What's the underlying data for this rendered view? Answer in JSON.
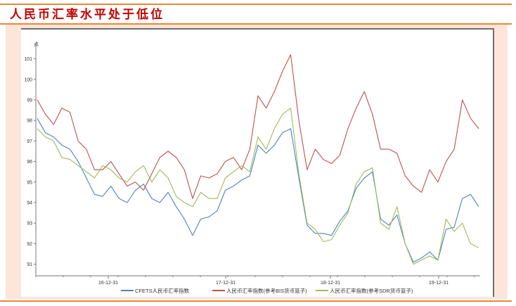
{
  "header": {
    "title": "人民币汇率水平处于低位"
  },
  "colors": {
    "accent_rule": "#ef8535",
    "title": "#c00000",
    "panel_bg": "#fde5d9",
    "cfets": "#4f81c4",
    "bis": "#c0504d",
    "sdr": "#9bbb59"
  },
  "chart_data": {
    "type": "line",
    "title": "人民币汇率水平处于低位",
    "xlabel": "",
    "ylabel": "点",
    "ylim": [
      90.5,
      101.6
    ],
    "yticks": [
      91,
      92,
      93,
      94,
      95,
      96,
      97,
      98,
      99,
      100,
      101
    ],
    "xticks": [
      "16-12-31",
      "17-12-31",
      "18-12-31",
      "19-12-31"
    ],
    "grid": false,
    "legend_position": "bottom",
    "x": [
      "2015-11",
      "2015-12",
      "2016-01",
      "2016-02",
      "2016-03",
      "2016-04",
      "2016-05",
      "2016-06",
      "2016-07",
      "2016-08",
      "2016-09",
      "2016-10",
      "2016-11",
      "2016-12",
      "2017-01",
      "2017-02",
      "2017-03",
      "2017-04",
      "2017-05",
      "2017-06",
      "2017-07",
      "2017-08",
      "2017-09",
      "2017-10",
      "2017-11",
      "2017-12",
      "2018-01",
      "2018-02",
      "2018-03",
      "2018-04",
      "2018-05",
      "2018-06",
      "2018-07",
      "2018-08",
      "2018-09",
      "2018-10",
      "2018-11",
      "2018-12",
      "2019-01",
      "2019-02",
      "2019-03",
      "2019-04",
      "2019-05",
      "2019-06",
      "2019-07",
      "2019-08",
      "2019-09",
      "2019-10",
      "2019-11",
      "2019-12",
      "2020-01",
      "2020-02",
      "2020-03",
      "2020-04",
      "2020-05"
    ],
    "series": [
      {
        "name": "CFETS人民币汇率指数",
        "color": "#4f81c4",
        "values": [
          98.1,
          97.4,
          97.2,
          96.8,
          96.6,
          96.0,
          95.2,
          94.4,
          94.3,
          94.8,
          94.2,
          94.0,
          94.6,
          94.9,
          94.2,
          94.0,
          94.5,
          93.8,
          93.2,
          92.4,
          93.2,
          93.3,
          93.6,
          94.6,
          94.8,
          95.1,
          95.3,
          96.8,
          96.4,
          96.8,
          97.4,
          97.6,
          95.2,
          92.9,
          92.5,
          92.5,
          92.4,
          93.1,
          93.6,
          94.7,
          95.2,
          95.5,
          93.2,
          92.9,
          93.4,
          92.0,
          91.1,
          91.3,
          91.6,
          91.2,
          92.7,
          92.8,
          94.2,
          94.4,
          93.8
        ]
      },
      {
        "name": "人民币汇率指数(参考BIS货币篮子)",
        "color": "#c0504d",
        "values": [
          99.0,
          98.3,
          97.8,
          98.6,
          98.4,
          97.0,
          96.6,
          95.6,
          95.6,
          96.0,
          95.4,
          94.8,
          95.0,
          94.6,
          95.4,
          96.2,
          96.5,
          96.2,
          95.6,
          94.2,
          95.3,
          95.2,
          95.4,
          96.0,
          96.2,
          95.6,
          96.6,
          99.2,
          98.6,
          99.4,
          100.4,
          101.2,
          98.0,
          95.6,
          96.6,
          96.1,
          95.9,
          96.3,
          97.6,
          98.6,
          99.4,
          98.3,
          96.6,
          96.6,
          96.4,
          95.3,
          94.8,
          94.5,
          95.6,
          95.0,
          96.0,
          96.6,
          99.0,
          98.1,
          97.6
        ]
      },
      {
        "name": "人民币汇率指数(参考SDR货币篮子)",
        "color": "#9bbb59",
        "values": [
          97.6,
          97.2,
          97.0,
          96.2,
          96.1,
          95.8,
          95.5,
          95.2,
          95.8,
          95.6,
          95.2,
          95.0,
          95.5,
          95.8,
          95.0,
          95.6,
          95.2,
          94.3,
          94.0,
          93.8,
          94.5,
          94.2,
          94.2,
          95.2,
          95.5,
          95.8,
          95.5,
          97.2,
          96.6,
          97.6,
          98.3,
          98.6,
          95.4,
          93.0,
          92.7,
          92.1,
          92.2,
          92.9,
          93.5,
          94.9,
          95.5,
          95.7,
          93.0,
          92.7,
          93.8,
          92.0,
          91.0,
          91.2,
          91.4,
          91.2,
          93.2,
          92.6,
          93.0,
          92.0,
          91.8
        ]
      }
    ]
  },
  "axis": {
    "y_unit": "点",
    "y_tick_labels": [
      "101",
      "100",
      "99",
      "98",
      "97",
      "96",
      "95",
      "94",
      "93",
      "92",
      "91"
    ],
    "x_tick_labels": [
      "16-12-31",
      "17-12-31",
      "18-12-31",
      "19-12-31"
    ]
  },
  "legend": {
    "items": [
      {
        "label": "CFETS人民币汇率指数",
        "color": "#4f81c4"
      },
      {
        "label": "人民币汇率指数(参考BIS货币篮子)",
        "color": "#c0504d"
      },
      {
        "label": "人民币汇率指数(参考SDR货币篮子)",
        "color": "#9bbb59"
      }
    ]
  }
}
